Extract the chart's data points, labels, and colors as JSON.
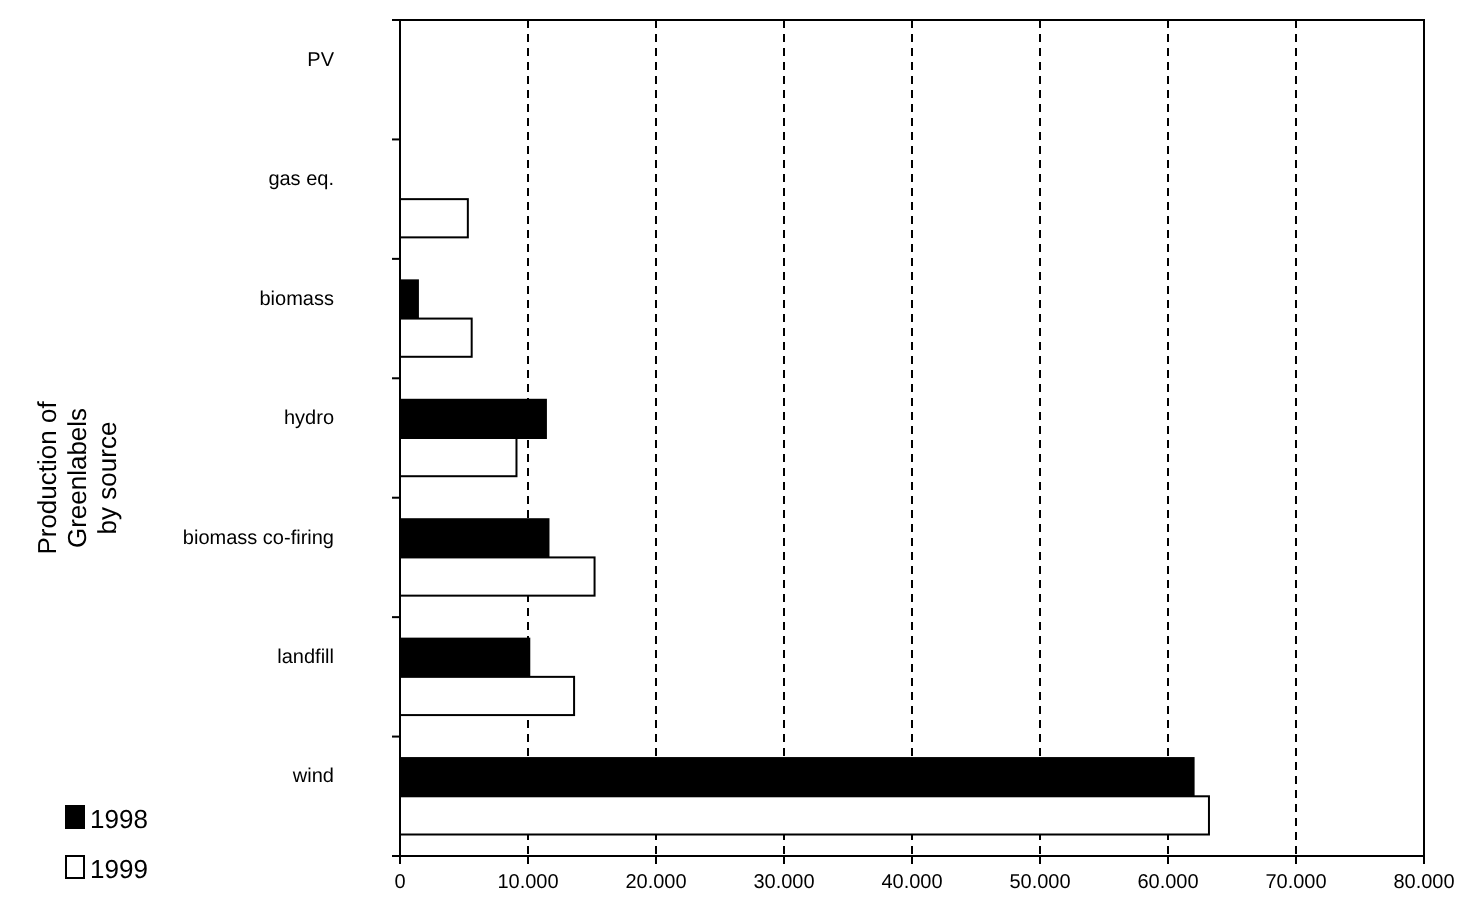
{
  "chart_data": {
    "type": "bar",
    "orientation": "horizontal",
    "ylabel": "Production of Greenlabels by source",
    "categories": [
      "PV",
      "gas eq.",
      "biomass",
      "hydro",
      "biomass co-firing",
      "landfill",
      "wind"
    ],
    "series": [
      {
        "name": "1998",
        "color": "#000000",
        "values": [
          0,
          0,
          1400,
          11400,
          11600,
          10100,
          62000
        ]
      },
      {
        "name": "1999",
        "color": "#ffffff",
        "values": [
          0,
          5300,
          5600,
          9100,
          15200,
          13600,
          63200
        ]
      }
    ],
    "xlim": [
      0,
      80000
    ],
    "xticks": [
      0,
      {
        "value": 10000,
        "label": "10.000"
      },
      {
        "value": 20000,
        "label": "20.000"
      },
      {
        "value": 30000,
        "label": "30.000"
      },
      {
        "value": 40000,
        "label": "40.000"
      },
      {
        "value": 50000,
        "label": "50.000"
      },
      {
        "value": 60000,
        "label": "60.000"
      },
      {
        "value": 70000,
        "label": "70.000"
      },
      {
        "value": 80000,
        "label": "80.000"
      }
    ],
    "grid": "x",
    "legend": "bottom left"
  }
}
